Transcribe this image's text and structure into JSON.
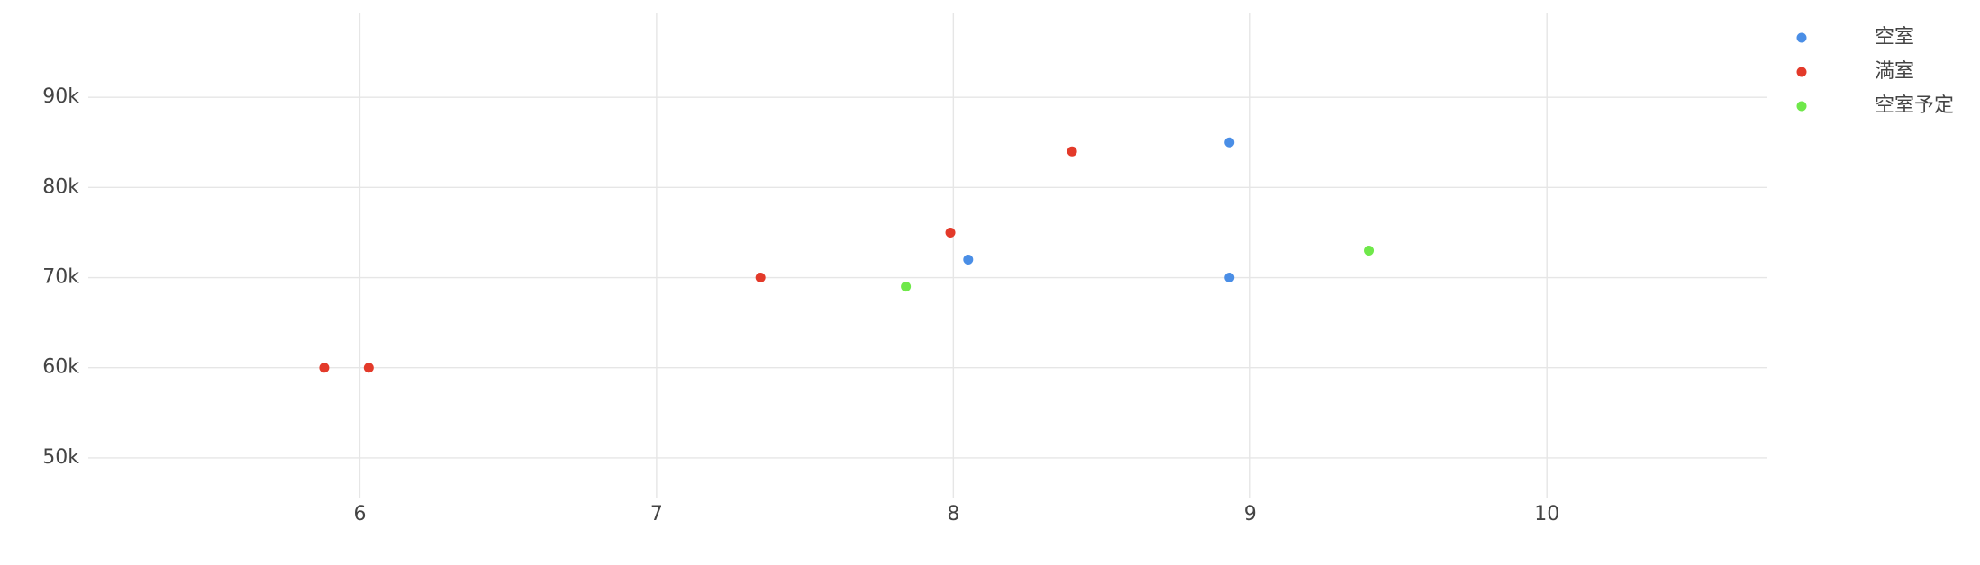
{
  "chart_data": {
    "type": "scatter",
    "series": [
      {
        "name": "空室",
        "color": "#4a8ee6",
        "x": [
          8.93,
          8.05,
          8.93
        ],
        "values": [
          85000,
          72000,
          70000
        ]
      },
      {
        "name": "満室",
        "color": "#e33a2a",
        "x": [
          5.88,
          6.03,
          7.35,
          7.99,
          8.4
        ],
        "values": [
          60000,
          60000,
          70000,
          75000,
          84000
        ]
      },
      {
        "name": "空室予定",
        "color": "#6fe84a",
        "x": [
          7.84,
          9.4
        ],
        "values": [
          69000,
          73000
        ]
      }
    ],
    "xlim": [
      5.085,
      10.74
    ],
    "xticks": [
      6,
      7,
      8,
      9,
      10
    ],
    "ylim": [
      45500,
      99400
    ],
    "yticks": [
      {
        "value": 50000,
        "label": "50k"
      },
      {
        "value": 60000,
        "label": "60k"
      },
      {
        "value": 70000,
        "label": "70k"
      },
      {
        "value": 80000,
        "label": "80k"
      },
      {
        "value": 90000,
        "label": "90k"
      }
    ],
    "grid": true,
    "legend": "top-right"
  }
}
